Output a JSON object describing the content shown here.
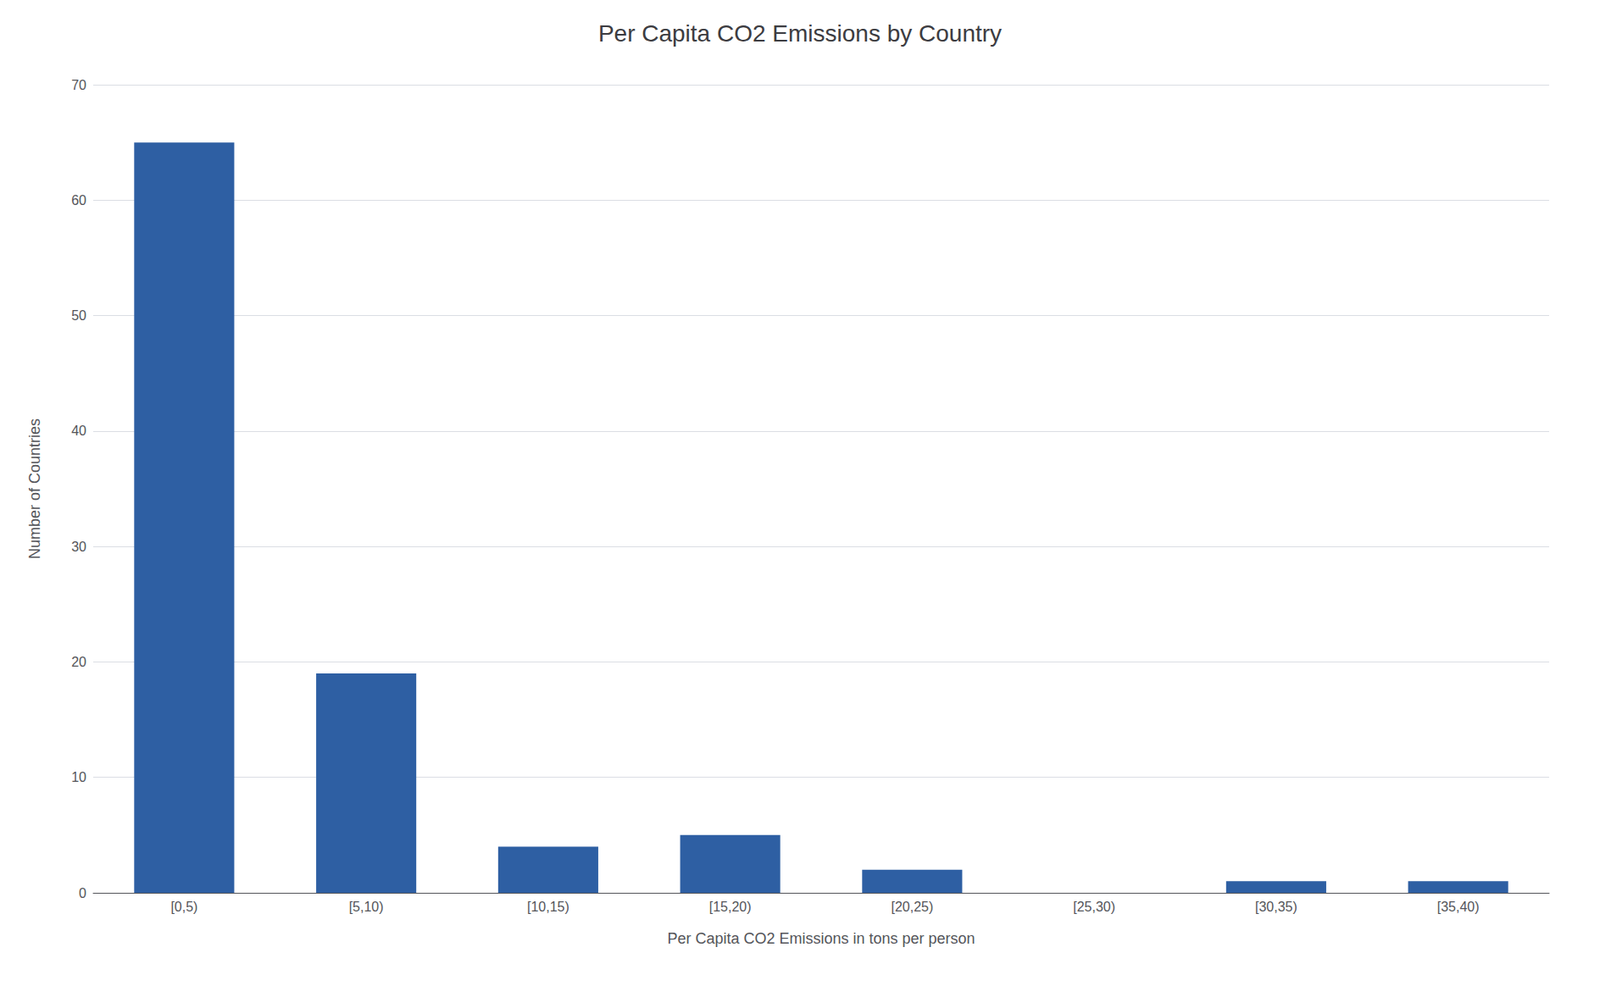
{
  "chart_data": {
    "type": "bar",
    "title": "Per Capita CO2 Emissions by Country",
    "xlabel": "Per Capita CO2 Emissions in tons per person",
    "ylabel": "Number of Countries",
    "categories": [
      "[0,5)",
      "[5,10)",
      "[10,15)",
      "[15,20)",
      "[20,25)",
      "[25,30)",
      "[30,35)",
      "[35,40)"
    ],
    "values": [
      65,
      19,
      4,
      5,
      2,
      0,
      1,
      1
    ],
    "color": "#2E5FA3",
    "ylim": [
      0,
      70
    ],
    "yticks": [
      0,
      10,
      20,
      30,
      40,
      50,
      60,
      70
    ],
    "grid": true
  }
}
